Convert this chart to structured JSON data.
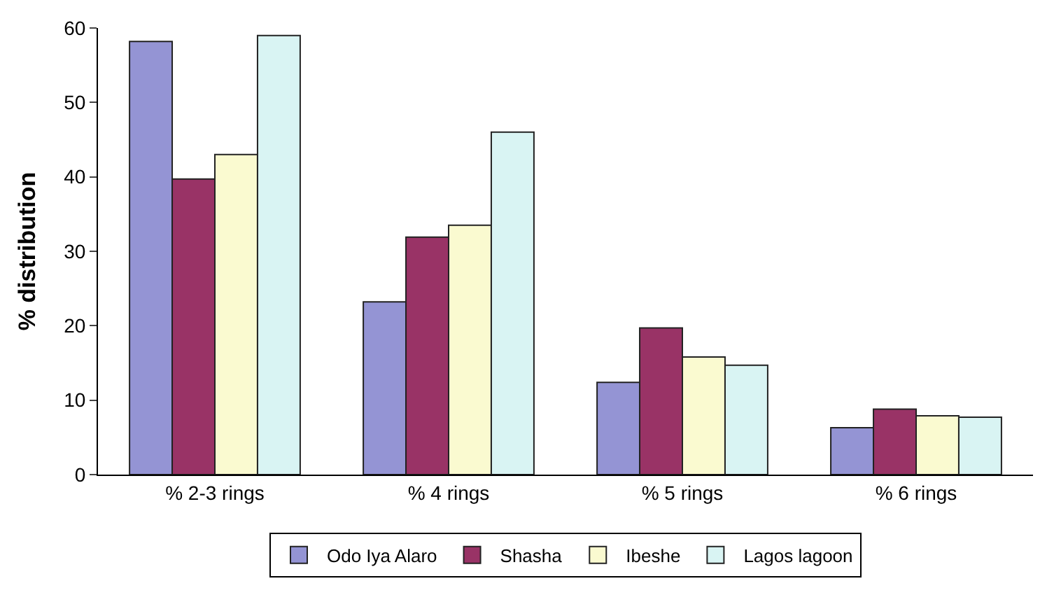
{
  "chart_data": {
    "type": "bar",
    "ylabel": "% distribution",
    "categories": [
      "% 2-3 rings",
      "% 4 rings",
      "% 5 rings",
      "% 6 rings"
    ],
    "series": [
      {
        "name": "Odo Iya Alaro",
        "color": "#9494d4",
        "values": [
          58.2,
          23.2,
          12.4,
          6.3
        ]
      },
      {
        "name": "Shasha",
        "color": "#993366",
        "values": [
          39.7,
          31.9,
          19.7,
          8.8
        ]
      },
      {
        "name": "Ibeshe",
        "color": "#fafad0",
        "values": [
          43,
          33.5,
          15.8,
          7.9
        ]
      },
      {
        "name": "Lagos lagoon",
        "color": "#d9f4f3",
        "values": [
          59,
          46,
          14.7,
          7.7
        ]
      }
    ],
    "ylim": [
      0,
      60
    ],
    "yticks": [
      0,
      10,
      20,
      30,
      40,
      50,
      60
    ],
    "grid": false,
    "legend": "bottom"
  }
}
